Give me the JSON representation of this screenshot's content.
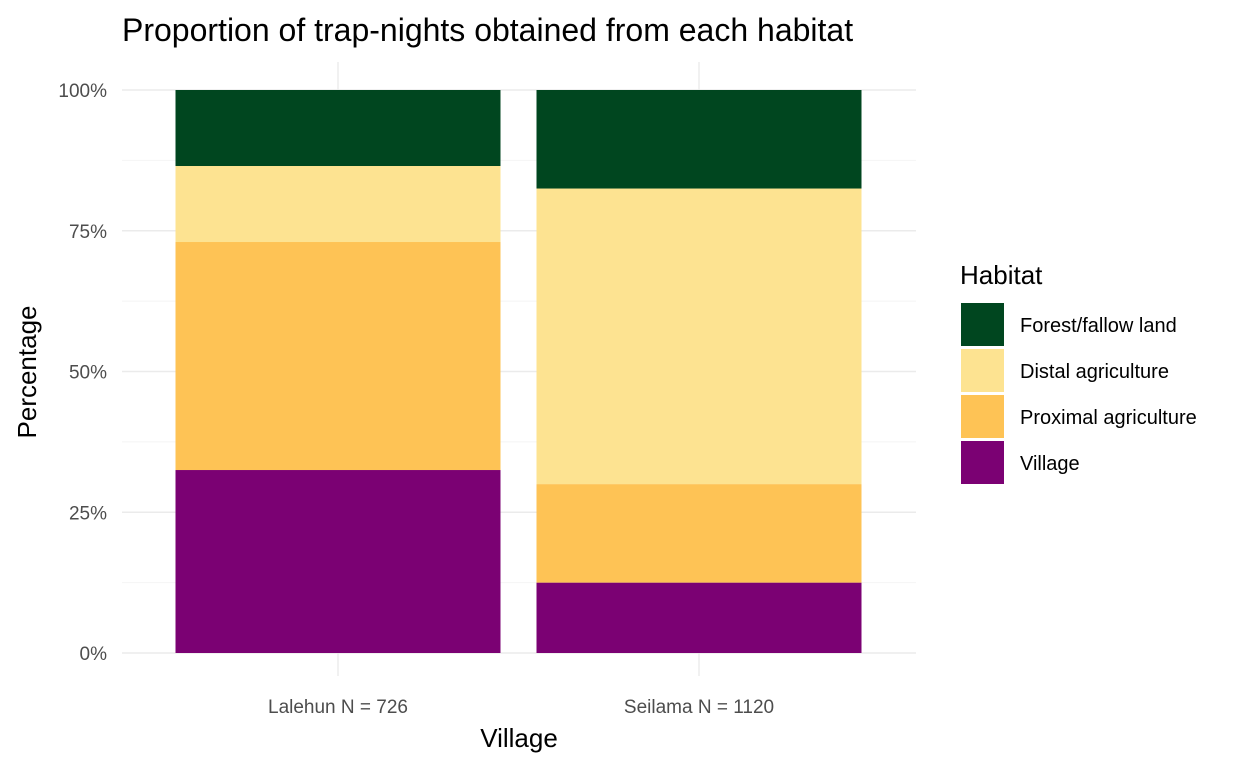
{
  "chart_data": {
    "type": "bar",
    "stacked": true,
    "title": "Proportion of trap-nights obtained from each habitat",
    "xlabel": "Village",
    "ylabel": "Percentage",
    "categories": [
      "Lalehun N = 726",
      "Seilama N = 1120"
    ],
    "series": [
      {
        "name": "Village",
        "color": "#7b0173",
        "values": [
          32.5,
          12.5
        ]
      },
      {
        "name": "Proximal agriculture",
        "color": "#fec355",
        "values": [
          40.5,
          17.5
        ]
      },
      {
        "name": "Distal agriculture",
        "color": "#fde391",
        "values": [
          13.5,
          52.5
        ]
      },
      {
        "name": "Forest/fallow land",
        "color": "#00461f",
        "values": [
          13.5,
          17.5
        ]
      }
    ],
    "ylim": [
      0,
      100
    ],
    "yticks": [
      0,
      25,
      50,
      75,
      100
    ],
    "ytick_labels": [
      "0%",
      "25%",
      "50%",
      "75%",
      "100%"
    ],
    "grid": true,
    "legend": {
      "title": "Habitat",
      "position": "right",
      "entries": [
        "Forest/fallow land",
        "Distal agriculture",
        "Proximal agriculture",
        "Village"
      ]
    }
  }
}
